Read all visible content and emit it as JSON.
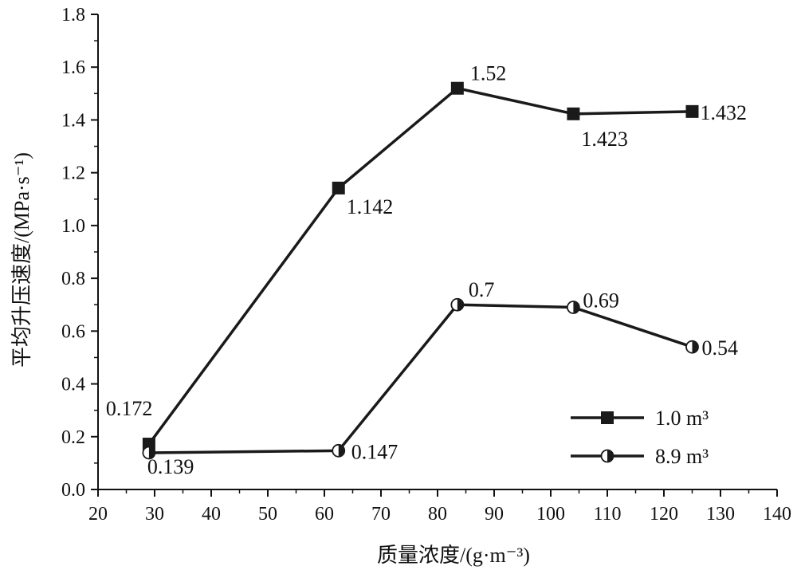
{
  "chart_data": {
    "type": "line",
    "xlabel": "质量浓度/(g·m⁻³)",
    "ylabel": "平均升压速度/(MPa·s⁻¹)",
    "xlim": [
      20,
      140
    ],
    "ylim": [
      0.0,
      1.8
    ],
    "xticks": [
      20,
      30,
      40,
      50,
      60,
      70,
      80,
      90,
      100,
      110,
      120,
      130,
      140
    ],
    "xtick_labels": [
      "20",
      "30",
      "40",
      "50",
      "60",
      "70",
      "80",
      "90",
      "100",
      "110",
      "120",
      "130",
      "140"
    ],
    "yticks": [
      0.0,
      0.2,
      0.4,
      0.6,
      0.8,
      1.0,
      1.2,
      1.4,
      1.6,
      1.8
    ],
    "ytick_labels": [
      "0.0",
      "0.2",
      "0.4",
      "0.6",
      "0.8",
      "1.0",
      "1.2",
      "1.4",
      "1.6",
      "1.8"
    ],
    "grid": false,
    "legend": "bottom-right",
    "series": [
      {
        "name": "1.0 m³",
        "marker": "square",
        "color": "#1a1a1a",
        "x": [
          29,
          62.5,
          83.5,
          104,
          125
        ],
        "y": [
          0.172,
          1.142,
          1.52,
          1.423,
          1.432
        ],
        "labels": [
          "0.172",
          "1.142",
          "1.52",
          "1.423",
          "1.432"
        ]
      },
      {
        "name": "8.9 m³",
        "marker": "half-circle",
        "color": "#1a1a1a",
        "x": [
          29,
          62.5,
          83.5,
          104,
          125
        ],
        "y": [
          0.139,
          0.147,
          0.7,
          0.69,
          0.54
        ],
        "labels": [
          "0.139",
          "0.147",
          "0.7",
          "0.69",
          "0.54"
        ]
      }
    ]
  }
}
